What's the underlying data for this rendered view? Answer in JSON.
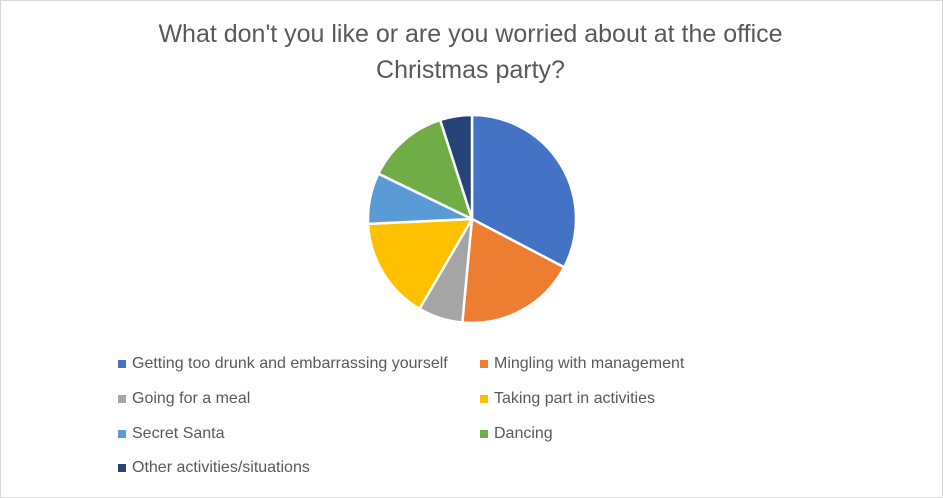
{
  "chart_data": {
    "type": "pie",
    "title": "What don't you like or are you worried about at the office Christmas party?",
    "title_lines": [
      "What don't you like or are you worried about at the office",
      "Christmas party?"
    ],
    "legend_position": "bottom",
    "slices": [
      {
        "name": "Getting too drunk and embarrassing yourself",
        "value": 33,
        "color": "#4472c4"
      },
      {
        "name": "Mingling with management",
        "value": 19,
        "color": "#ed7d31"
      },
      {
        "name": "Going for a meal",
        "value": 7,
        "color": "#a5a5a5"
      },
      {
        "name": "Taking part in activities",
        "value": 16,
        "color": "#ffc000"
      },
      {
        "name": "Secret Santa",
        "value": 8,
        "color": "#5b9bd5"
      },
      {
        "name": "Dancing",
        "value": 13,
        "color": "#70ad47"
      },
      {
        "name": "Other activities/situations",
        "value": 5,
        "color": "#264478"
      }
    ]
  }
}
